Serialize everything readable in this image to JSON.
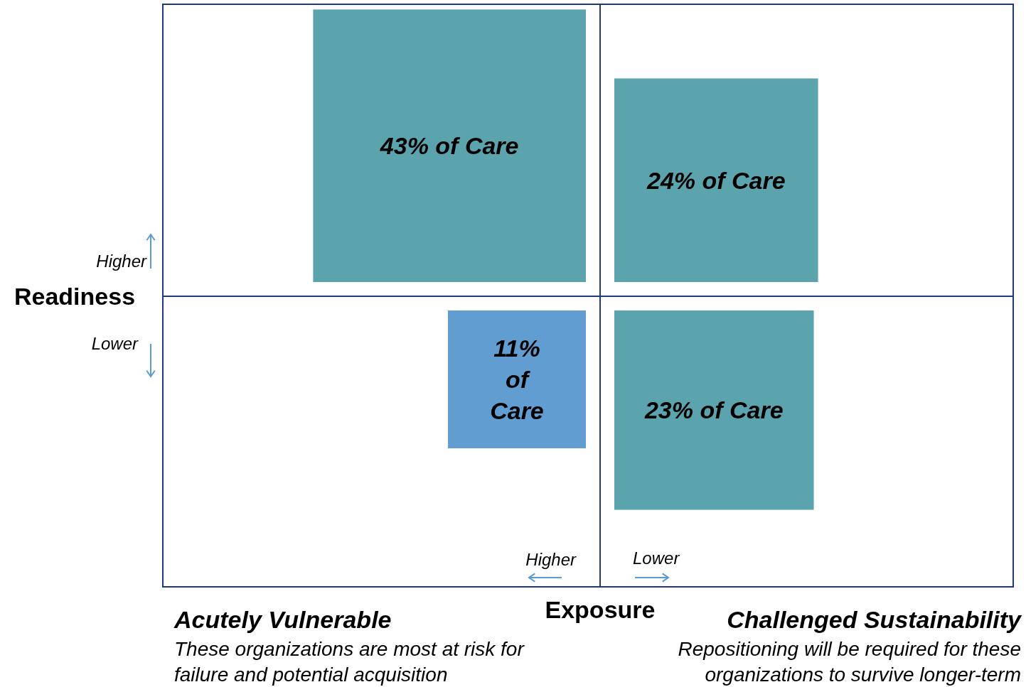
{
  "chart_data": {
    "type": "other",
    "xlabel": "Exposure",
    "ylabel": "Readiness",
    "values": [
      43,
      24,
      11,
      23
    ],
    "value_labels": [
      "43% of Care",
      "24% of Care",
      "11% of Care",
      "23% of Care"
    ],
    "colors": [
      "#5ba4ae",
      "#5ba4ae",
      "#629dd1",
      "#5ba4ae"
    ],
    "annotations": [
      "Higher",
      "Lower",
      "Higher",
      "Lower",
      "Acutely Vulnerable",
      "These organizations are most at risk for failure and potential acquisition",
      "Challenged Sustainability",
      "Repositioning will be required for these organizations to survive longer-term"
    ]
  }
}
